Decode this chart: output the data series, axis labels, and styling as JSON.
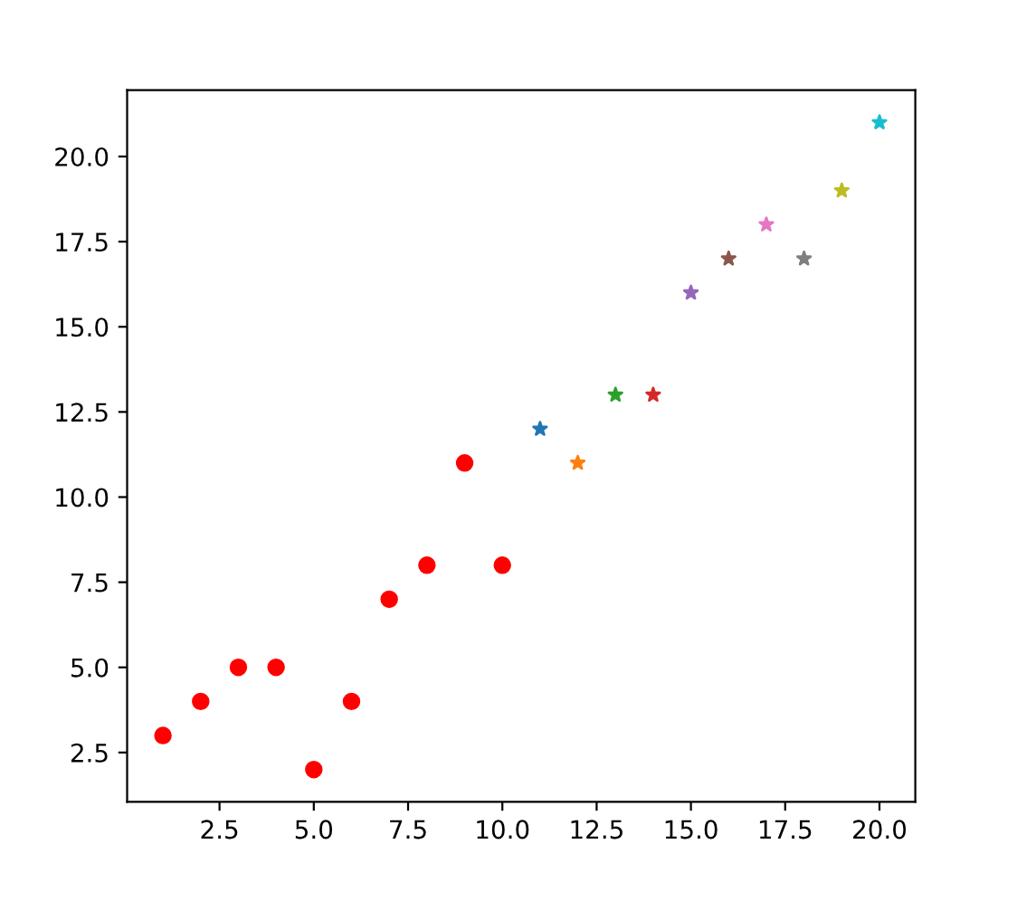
{
  "chart_data": {
    "type": "scatter",
    "series": [
      {
        "color": "#ff0000",
        "marker": "circle",
        "x": [
          1,
          2,
          3,
          4,
          5,
          6,
          7,
          8,
          9,
          10
        ],
        "values": [
          3,
          4,
          5,
          5,
          2,
          4,
          7,
          8,
          11,
          8
        ]
      },
      {
        "colors": [
          "#1f77b4",
          "#ff7f0e",
          "#2ca02c",
          "#d62728",
          "#9467bd",
          "#8c564b",
          "#e377c2",
          "#7f7f7f",
          "#bcbd22",
          "#17becf"
        ],
        "marker": "star",
        "x": [
          11,
          12,
          13,
          14,
          15,
          16,
          17,
          18,
          19,
          20
        ],
        "values": [
          12,
          11,
          13,
          13,
          16,
          17,
          18,
          17,
          19,
          21
        ]
      }
    ],
    "xlim": [
      0.05,
      20.95
    ],
    "ylim": [
      1.05,
      21.95
    ],
    "xticks": [
      2.5,
      {
        "value": 5,
        "label": "5.0"
      },
      7.5,
      {
        "value": 10,
        "label": "10.0"
      },
      12.5,
      {
        "value": 15,
        "label": "15.0"
      },
      17.5,
      {
        "value": 20,
        "label": "20.0"
      }
    ],
    "yticks": [
      2.5,
      {
        "value": 5,
        "label": "5.0"
      },
      7.5,
      {
        "value": 10,
        "label": "10.0"
      },
      12.5,
      {
        "value": 15,
        "label": "15.0"
      },
      17.5,
      {
        "value": 20,
        "label": "20.0"
      }
    ],
    "tick_labels": true
  }
}
